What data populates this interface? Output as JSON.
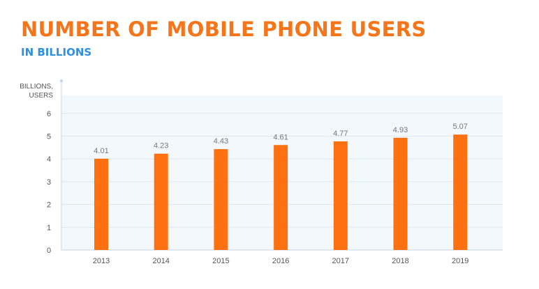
{
  "header": {
    "title": "NUMBER OF MOBILE PHONE USERS",
    "subtitle": "IN BILLIONS"
  },
  "colors": {
    "title": "#f5761a",
    "subtitle": "#2f8fe0",
    "bar": "#ff7010",
    "plot_bg": "#f3f8fd",
    "grid": "#dde7f1",
    "axis": "#c6d6e6",
    "tick_text": "#555555",
    "label_text": "#777777"
  },
  "chart_data": {
    "type": "bar",
    "categories": [
      "2013",
      "2014",
      "2015",
      "2016",
      "2017",
      "2018",
      "2019"
    ],
    "values": [
      4.01,
      4.23,
      4.43,
      4.61,
      4.77,
      4.93,
      5.07
    ],
    "value_labels": [
      "4.01",
      "4.23",
      "4.43",
      "4.61",
      "4.77",
      "4.93",
      "5.07"
    ],
    "ylabel_lines": [
      "BILLIONS,",
      "USERS"
    ],
    "yticks": [
      "0",
      "1",
      "2",
      "3",
      "4",
      "5",
      "6"
    ],
    "ylim": [
      0,
      6
    ],
    "grid": true,
    "legend": "none"
  }
}
